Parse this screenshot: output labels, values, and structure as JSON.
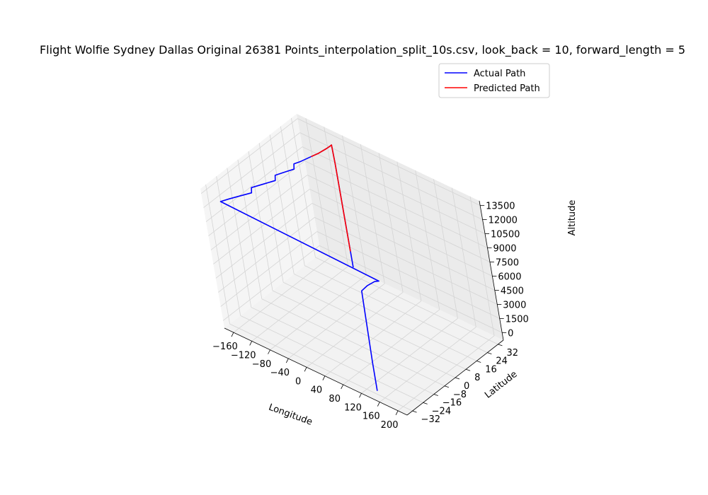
{
  "chart_data": {
    "type": "line",
    "projection": "3d",
    "title": "Flight Wolfie Sydney Dallas Original 26381 Points_interpolation_split_10s.csv, look_back = 10, forward_length = 5",
    "xlabel": "Longitude",
    "ylabel": "Latitude",
    "zlabel": "Altitude",
    "xlim": [
      -180,
      220
    ],
    "ylim": [
      -36,
      36
    ],
    "zlim": [
      -800,
      14000
    ],
    "x_ticks": [
      "−160",
      "−120",
      "−80",
      "−40",
      "0",
      "40",
      "80",
      "120",
      "160",
      "200"
    ],
    "x_tick_values": [
      -160,
      -120,
      -80,
      -40,
      0,
      40,
      80,
      120,
      160,
      200
    ],
    "y_ticks": [
      "−32",
      "−24",
      "−16",
      "−8",
      "0",
      "8",
      "16",
      "24",
      "32"
    ],
    "y_tick_values": [
      -32,
      -24,
      -16,
      -8,
      0,
      8,
      16,
      24,
      32
    ],
    "z_ticks": [
      "0",
      "1500",
      "3000",
      "4500",
      "6000",
      "7500",
      "9000",
      "10500",
      "12000",
      "13500"
    ],
    "z_tick_values": [
      0,
      1500,
      3000,
      4500,
      6000,
      7500,
      9000,
      10500,
      12000,
      13500
    ],
    "grid": true,
    "legend_position": "top-right",
    "series": [
      {
        "name": "Actual Path",
        "color": "#0000ff",
        "points": [
          [
            151.2,
            -33.9,
            0
          ],
          [
            151.3,
            -33.8,
            3000
          ],
          [
            152,
            -33,
            10500
          ],
          [
            160,
            -31,
            11000
          ],
          [
            172,
            -29,
            11500
          ],
          [
            177,
            -27.5,
            11500
          ],
          [
            -177,
            -25,
            11500
          ],
          [
            -170,
            -21,
            11500
          ],
          [
            -162,
            -17,
            11500
          ],
          [
            -150,
            -11,
            11500
          ],
          [
            -150,
            -10.5,
            12000
          ],
          [
            -140,
            -5,
            12000
          ],
          [
            -130,
            0.5,
            12000
          ],
          [
            -130,
            1,
            12500
          ],
          [
            -122,
            6,
            12500
          ],
          [
            -115,
            10,
            12500
          ],
          [
            -115,
            10.5,
            13000
          ],
          [
            -110,
            14,
            13000
          ],
          [
            -104,
            20,
            13000
          ],
          [
            -100,
            24,
            13000
          ],
          [
            -97.5,
            29,
            13000
          ],
          [
            -97,
            31,
            13000
          ],
          [
            -97,
            32.5,
            13000
          ],
          [
            -97.1,
            32.8,
            11000
          ],
          [
            -97.1,
            32.9,
            0
          ]
        ]
      },
      {
        "name": "Predicted Path",
        "color": "#ff0000",
        "points": [
          [
            -104,
            20,
            13000
          ],
          [
            -100,
            24,
            13000
          ],
          [
            -97.5,
            29,
            13000
          ],
          [
            -97,
            31,
            13000
          ],
          [
            -97,
            32.5,
            13000
          ],
          [
            -97.1,
            32.8,
            11000
          ],
          [
            -97.1,
            32.85,
            1700
          ]
        ]
      }
    ]
  }
}
